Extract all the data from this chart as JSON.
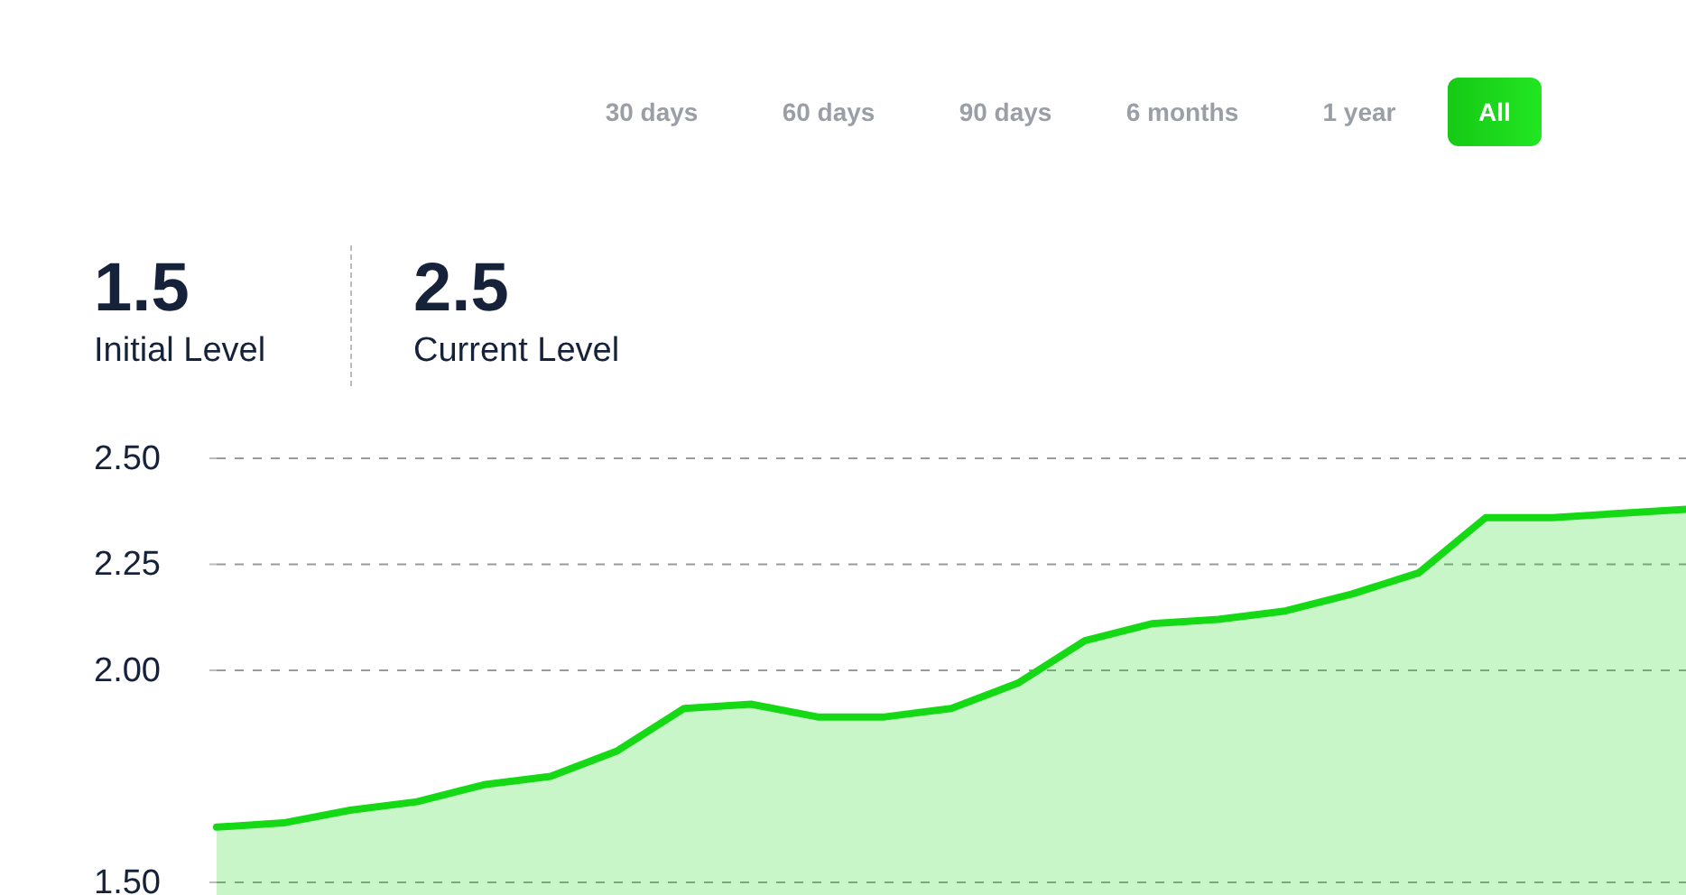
{
  "chart_data": {
    "type": "area",
    "categories": [
      null,
      null,
      null,
      null,
      null,
      null,
      null,
      null,
      null,
      null,
      null,
      null,
      null,
      null,
      null,
      null,
      null,
      null,
      null,
      null,
      null,
      null,
      null
    ],
    "series": [
      {
        "color": "#16d916",
        "values": [
          1.63,
          1.64,
          1.67,
          1.69,
          1.73,
          1.75,
          1.81,
          1.91,
          1.92,
          1.89,
          1.89,
          1.91,
          1.97,
          2.07,
          2.11,
          2.12,
          2.14,
          2.18,
          2.23,
          2.36,
          2.36,
          2.37,
          2.38
        ]
      }
    ],
    "ylim": [
      1.47,
      2.5
    ],
    "yticks": [
      {
        "value": 2.5,
        "label": "2.50"
      },
      2.25,
      {
        "value": 2.0,
        "label": "2.00"
      },
      {
        "value": 1.5,
        "label": "1.50"
      }
    ],
    "grid": "y",
    "legend": false,
    "tick_labels": "y",
    "marker": "none",
    "line_style": "solid",
    "annotations": [
      "30 days",
      "60 days",
      "90 days",
      "6 months",
      "1 year",
      "All",
      "1.5",
      "Initial Level",
      "2.5",
      "Current Level"
    ]
  }
}
